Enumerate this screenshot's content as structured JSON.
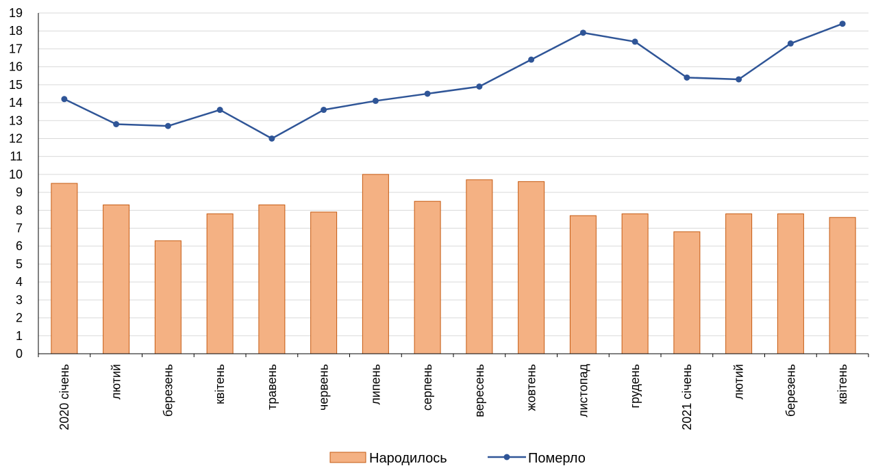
{
  "chart_data": {
    "type": "bar+line",
    "categories": [
      "2020 січень",
      "лютий",
      "березень",
      "квітень",
      "травень",
      "червень",
      "липень",
      "серпень",
      "вересень",
      "жовтень",
      "листопад",
      "грудень",
      "2021 січень",
      "лютий",
      "березень",
      "квітень"
    ],
    "series": [
      {
        "name": "Народилось",
        "type": "bar",
        "color": "#F4B183",
        "border": "#C55A11",
        "values": [
          9.5,
          8.3,
          6.3,
          7.8,
          8.3,
          7.9,
          10.0,
          8.5,
          9.7,
          9.6,
          7.7,
          7.8,
          6.8,
          7.8,
          7.8,
          7.6
        ]
      },
      {
        "name": "Померло",
        "type": "line",
        "color": "#2F5597",
        "values": [
          14.2,
          12.8,
          12.7,
          13.6,
          12.0,
          13.6,
          14.1,
          14.5,
          14.9,
          16.4,
          17.9,
          17.4,
          15.4,
          15.3,
          17.3,
          18.4
        ]
      }
    ],
    "ylim": [
      0,
      19
    ],
    "yticks": [
      0,
      1,
      2,
      3,
      4,
      5,
      6,
      7,
      8,
      9,
      10,
      11,
      12,
      13,
      14,
      15,
      16,
      17,
      18,
      19
    ],
    "grid": true,
    "legend_position": "bottom"
  }
}
